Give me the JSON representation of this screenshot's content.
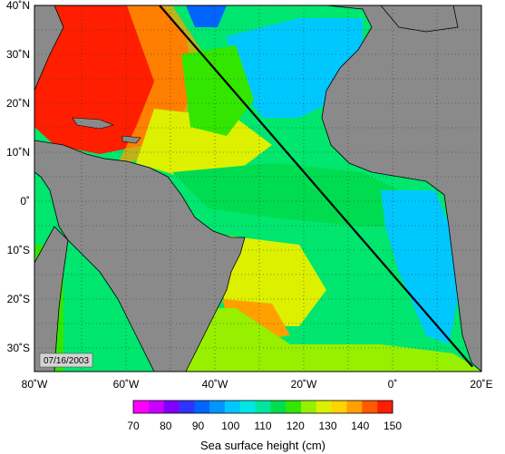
{
  "map": {
    "date_label": "07/16/2003",
    "lon_ticks": [
      "80˚W",
      "60˚W",
      "40˚W",
      "20˚W",
      "0˚",
      "20˚E"
    ],
    "lat_ticks": [
      "40˚N",
      "30˚N",
      "20˚N",
      "10˚N",
      "0˚",
      "10˚S",
      "20˚S",
      "30˚S"
    ],
    "extent": {
      "lon_min": -80,
      "lon_max": 20,
      "lat_min": -35,
      "lat_max": 40
    },
    "transect_line": {
      "start": {
        "lon": -52,
        "lat": 40
      },
      "end": {
        "lon": 18,
        "lat": -34
      }
    },
    "land_color": "#8a8a8a"
  },
  "colorbar": {
    "title": "Sea surface height (cm)",
    "range": [
      70,
      150
    ],
    "tick_labels": [
      "70",
      "80",
      "90",
      "100",
      "110",
      "120",
      "130",
      "140",
      "150"
    ],
    "colors": [
      "#ff00ff",
      "#c800ff",
      "#8000ff",
      "#3232ff",
      "#0064ff",
      "#0096ff",
      "#00c8ff",
      "#00e6e6",
      "#00e6a0",
      "#00dc50",
      "#32e600",
      "#96f000",
      "#dcf000",
      "#ffd200",
      "#ffa000",
      "#ff5a00",
      "#ff1e00"
    ]
  }
}
